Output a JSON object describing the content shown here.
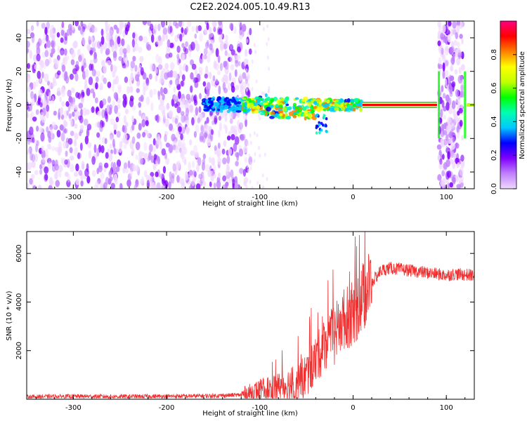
{
  "title": "C2E2.2024.005.10.49.R13",
  "chart_data": [
    {
      "type": "heatmap",
      "xlabel": "Height of straight line (km)",
      "ylabel": "Frequency (Hz)",
      "xlim": [
        -350,
        130
      ],
      "ylim": [
        -50,
        50
      ],
      "xticks": [
        -300,
        -200,
        -100,
        0,
        100
      ],
      "xtick_labels": [
        "-300",
        "-200",
        "-100",
        "0",
        "100"
      ],
      "yticks": [
        -40,
        -20,
        0,
        20,
        40
      ],
      "ytick_labels": [
        "-40",
        "-20",
        "0",
        "20",
        "40"
      ],
      "colorbar": {
        "label": "Normalized spectral amplitude",
        "range": [
          0,
          1
        ],
        "ticks": [
          0.0,
          0.2,
          0.4,
          0.6,
          0.8
        ],
        "tick_labels": [
          "0.0",
          "0.2",
          "0.4",
          "0.6",
          "0.8"
        ],
        "colormap": [
          "#f0d8ff",
          "#c080ff",
          "#8000ff",
          "#0000ff",
          "#00c8ff",
          "#00ffb0",
          "#00ff00",
          "#c0ff00",
          "#ffff00",
          "#ff8000",
          "#ff0000",
          "#ff0080"
        ]
      },
      "features": [
        {
          "name": "",
          "x_range": [
            -350,
            -110
          ],
          "freq_range": [
            -50,
            50
          ],
          "level": 0.12
        },
        {
          "name": "",
          "x_range": [
            -160,
            10
          ],
          "freq_center": 0,
          "level": 0.35
        },
        {
          "name": "",
          "x_range": [
            10,
            90
          ],
          "freq_center": 0,
          "level": 0.9
        },
        {
          "name": "",
          "x_range": [
            92,
            118
          ],
          "freq_range": [
            -50,
            50
          ],
          "level": 0.12
        },
        {
          "name": "",
          "x_range": [
            122,
            130
          ],
          "freq_center": 0,
          "level": 0.6
        }
      ],
      "grid": false
    },
    {
      "type": "line",
      "xlabel": "Height of straight line (km)",
      "ylabel": "SNR (10 * v/v)",
      "xlim": [
        -350,
        130
      ],
      "ylim": [
        0,
        6900
      ],
      "xticks": [
        -300,
        -200,
        -100,
        0,
        100
      ],
      "xtick_labels": [
        "-300",
        "-200",
        "-100",
        "0",
        "100"
      ],
      "yticks": [
        2000,
        4000,
        6000
      ],
      "ytick_labels": [
        "2000",
        "4000",
        "6000"
      ],
      "color": "#f03030",
      "series": [
        {
          "x": [
            -350,
            -300,
            -250,
            -200,
            -150,
            -120,
            -100,
            -80,
            -60,
            -50,
            -40,
            -30,
            -20,
            -10,
            0,
            10,
            20,
            30,
            40,
            60,
            80,
            100,
            110,
            130
          ],
          "y": [
            100,
            120,
            110,
            120,
            140,
            180,
            350,
            500,
            650,
            1000,
            1600,
            2300,
            2700,
            3300,
            3500,
            4200,
            4800,
            5300,
            5400,
            5300,
            5200,
            5100,
            5150,
            5100
          ]
        }
      ],
      "grid": false
    }
  ]
}
